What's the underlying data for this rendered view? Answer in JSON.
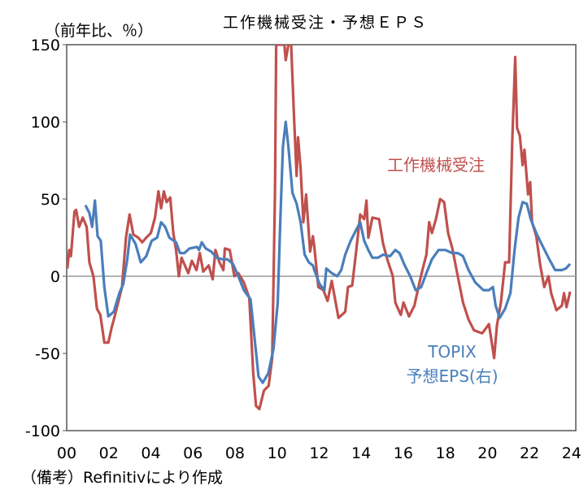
{
  "chart_data": {
    "type": "line",
    "title": "工作機械受注・予想ＥＰＳ",
    "ylabel": "（前年比、％）",
    "source_note": "（備考）Refinitivにより作成",
    "xlim": [
      2000,
      2024.2
    ],
    "ylim": [
      -100,
      150
    ],
    "yticks": [
      -100,
      -50,
      0,
      50,
      100,
      150
    ],
    "xtick_values": [
      2000,
      2002,
      2004,
      2006,
      2008,
      2010,
      2012,
      2014,
      2016,
      2018,
      2020,
      2022,
      2024
    ],
    "xtick_labels": [
      "00",
      "02",
      "04",
      "06",
      "08",
      "10",
      "12",
      "14",
      "16",
      "18",
      "20",
      "22",
      "24"
    ],
    "grid": false,
    "zero_line": true,
    "series": [
      {
        "name": "工作機械受注",
        "color": "#C0504D",
        "points": [
          [
            2000.03,
            5
          ],
          [
            2000.12,
            17
          ],
          [
            2000.2,
            13
          ],
          [
            2000.37,
            42
          ],
          [
            2000.45,
            43
          ],
          [
            2000.59,
            32
          ],
          [
            2000.76,
            38
          ],
          [
            2000.95,
            32
          ],
          [
            2001.08,
            9
          ],
          [
            2001.27,
            0
          ],
          [
            2001.44,
            -21
          ],
          [
            2001.6,
            -25
          ],
          [
            2001.79,
            -43
          ],
          [
            2001.98,
            -43
          ],
          [
            2002.14,
            -33
          ],
          [
            2002.3,
            -25
          ],
          [
            2002.63,
            -7
          ],
          [
            2002.82,
            25
          ],
          [
            2002.99,
            40
          ],
          [
            2003.17,
            27
          ],
          [
            2003.4,
            25
          ],
          [
            2003.59,
            22
          ],
          [
            2003.78,
            25
          ],
          [
            2004.0,
            28
          ],
          [
            2004.2,
            38
          ],
          [
            2004.36,
            55
          ],
          [
            2004.49,
            44
          ],
          [
            2004.62,
            55
          ],
          [
            2004.75,
            48
          ],
          [
            2004.92,
            51
          ],
          [
            2005.07,
            28
          ],
          [
            2005.2,
            17
          ],
          [
            2005.33,
            0
          ],
          [
            2005.46,
            12
          ],
          [
            2005.78,
            2
          ],
          [
            2005.95,
            10
          ],
          [
            2006.17,
            4
          ],
          [
            2006.33,
            15
          ],
          [
            2006.49,
            3
          ],
          [
            2006.75,
            7
          ],
          [
            2006.94,
            -2
          ],
          [
            2007.07,
            17
          ],
          [
            2007.26,
            9
          ],
          [
            2007.45,
            4
          ],
          [
            2007.52,
            18
          ],
          [
            2007.75,
            17
          ],
          [
            2007.97,
            0
          ],
          [
            2008.16,
            2
          ],
          [
            2008.42,
            -4
          ],
          [
            2008.68,
            -14
          ],
          [
            2008.87,
            -63
          ],
          [
            2009.0,
            -84
          ],
          [
            2009.16,
            -86
          ],
          [
            2009.38,
            -74
          ],
          [
            2009.6,
            -71
          ],
          [
            2009.77,
            -53
          ],
          [
            2009.9,
            53
          ],
          [
            2009.96,
            150
          ],
          [
            2010.35,
            150
          ],
          [
            2010.41,
            140
          ],
          [
            2010.54,
            150
          ],
          [
            2010.67,
            150
          ],
          [
            2010.8,
            105
          ],
          [
            2010.93,
            65
          ],
          [
            2011.0,
            90
          ],
          [
            2011.12,
            70
          ],
          [
            2011.25,
            35
          ],
          [
            2011.38,
            53
          ],
          [
            2011.57,
            16
          ],
          [
            2011.7,
            26
          ],
          [
            2011.77,
            19
          ],
          [
            2011.96,
            -7
          ],
          [
            2012.2,
            -9
          ],
          [
            2012.4,
            -16
          ],
          [
            2012.6,
            -3
          ],
          [
            2012.92,
            -27
          ],
          [
            2013.24,
            -23
          ],
          [
            2013.37,
            -7
          ],
          [
            2013.57,
            -6
          ],
          [
            2013.76,
            16
          ],
          [
            2013.95,
            40
          ],
          [
            2014.14,
            37
          ],
          [
            2014.25,
            49
          ],
          [
            2014.34,
            25
          ],
          [
            2014.53,
            38
          ],
          [
            2014.85,
            37
          ],
          [
            2015.04,
            21
          ],
          [
            2015.24,
            11
          ],
          [
            2015.5,
            0
          ],
          [
            2015.62,
            -17
          ],
          [
            2015.88,
            -25
          ],
          [
            2016.01,
            -17
          ],
          [
            2016.27,
            -26
          ],
          [
            2016.53,
            -19
          ],
          [
            2016.72,
            -7
          ],
          [
            2016.91,
            4
          ],
          [
            2017.1,
            14
          ],
          [
            2017.23,
            35
          ],
          [
            2017.36,
            28
          ],
          [
            2017.55,
            37
          ],
          [
            2017.75,
            50
          ],
          [
            2017.94,
            48
          ],
          [
            2018.13,
            28
          ],
          [
            2018.33,
            18
          ],
          [
            2018.59,
            0
          ],
          [
            2018.84,
            -17
          ],
          [
            2019.1,
            -28
          ],
          [
            2019.36,
            -35
          ],
          [
            2019.75,
            -37
          ],
          [
            2020.07,
            -31
          ],
          [
            2020.32,
            -53
          ],
          [
            2020.45,
            -32
          ],
          [
            2020.64,
            -17
          ],
          [
            2020.84,
            9
          ],
          [
            2021.03,
            9
          ],
          [
            2021.18,
            88
          ],
          [
            2021.32,
            142
          ],
          [
            2021.41,
            96
          ],
          [
            2021.54,
            91
          ],
          [
            2021.67,
            72
          ],
          [
            2021.76,
            82
          ],
          [
            2021.93,
            53
          ],
          [
            2022.03,
            61
          ],
          [
            2022.12,
            35
          ],
          [
            2022.32,
            26
          ],
          [
            2022.51,
            7
          ],
          [
            2022.7,
            -7
          ],
          [
            2022.9,
            0
          ],
          [
            2023.03,
            -11
          ],
          [
            2023.28,
            -22
          ],
          [
            2023.54,
            -19
          ],
          [
            2023.64,
            -11
          ],
          [
            2023.76,
            -20
          ],
          [
            2023.93,
            -10
          ]
        ]
      },
      {
        "name": "TOPIX 予想EPS(右)",
        "label_lines": [
          "TOPIX",
          "予想EPS(右)"
        ],
        "color": "#4A7EBB",
        "points": [
          [
            2000.89,
            46
          ],
          [
            2001.08,
            41
          ],
          [
            2001.21,
            32
          ],
          [
            2001.34,
            49
          ],
          [
            2001.47,
            26
          ],
          [
            2001.62,
            23
          ],
          [
            2001.79,
            -7
          ],
          [
            2001.98,
            -26
          ],
          [
            2002.24,
            -23
          ],
          [
            2002.5,
            -11
          ],
          [
            2002.69,
            -5
          ],
          [
            2002.88,
            11
          ],
          [
            2003.01,
            27
          ],
          [
            2003.27,
            21
          ],
          [
            2003.52,
            9
          ],
          [
            2003.78,
            13
          ],
          [
            2004.04,
            23
          ],
          [
            2004.3,
            25
          ],
          [
            2004.49,
            35
          ],
          [
            2004.68,
            32
          ],
          [
            2004.88,
            25
          ],
          [
            2005.2,
            22
          ],
          [
            2005.39,
            15
          ],
          [
            2005.59,
            15
          ],
          [
            2005.84,
            18
          ],
          [
            2006.2,
            19
          ],
          [
            2006.29,
            17
          ],
          [
            2006.42,
            22
          ],
          [
            2006.61,
            18
          ],
          [
            2006.87,
            16
          ],
          [
            2007.13,
            12
          ],
          [
            2007.39,
            11
          ],
          [
            2007.64,
            11
          ],
          [
            2007.9,
            8
          ],
          [
            2008.16,
            0
          ],
          [
            2008.42,
            -9
          ],
          [
            2008.74,
            -15
          ],
          [
            2008.93,
            -40
          ],
          [
            2009.12,
            -65
          ],
          [
            2009.32,
            -69
          ],
          [
            2009.58,
            -63
          ],
          [
            2009.83,
            -47
          ],
          [
            2010.03,
            -17
          ],
          [
            2010.15,
            35
          ],
          [
            2010.28,
            84
          ],
          [
            2010.41,
            100
          ],
          [
            2010.54,
            84
          ],
          [
            2010.73,
            54
          ],
          [
            2010.93,
            47
          ],
          [
            2011.12,
            35
          ],
          [
            2011.31,
            14
          ],
          [
            2011.51,
            9
          ],
          [
            2011.7,
            7
          ],
          [
            2011.77,
            4
          ],
          [
            2012.02,
            -5
          ],
          [
            2012.25,
            -9
          ],
          [
            2012.34,
            5
          ],
          [
            2012.6,
            2
          ],
          [
            2012.86,
            0
          ],
          [
            2013.05,
            4
          ],
          [
            2013.24,
            14
          ],
          [
            2013.5,
            23
          ],
          [
            2013.76,
            30
          ],
          [
            2013.95,
            35
          ],
          [
            2014.14,
            23
          ],
          [
            2014.34,
            17
          ],
          [
            2014.53,
            12
          ],
          [
            2014.79,
            12
          ],
          [
            2015.04,
            14
          ],
          [
            2015.37,
            13
          ],
          [
            2015.62,
            17
          ],
          [
            2015.82,
            15
          ],
          [
            2016.07,
            7
          ],
          [
            2016.33,
            0
          ],
          [
            2016.59,
            -9
          ],
          [
            2016.85,
            -7
          ],
          [
            2017.1,
            2
          ],
          [
            2017.36,
            11
          ],
          [
            2017.68,
            17
          ],
          [
            2018.0,
            17
          ],
          [
            2018.33,
            15
          ],
          [
            2018.59,
            15
          ],
          [
            2018.84,
            13
          ],
          [
            2019.1,
            4
          ],
          [
            2019.42,
            -4
          ],
          [
            2019.81,
            -9
          ],
          [
            2020.07,
            -9
          ],
          [
            2020.26,
            -7
          ],
          [
            2020.39,
            -19
          ],
          [
            2020.58,
            -27
          ],
          [
            2020.84,
            -21
          ],
          [
            2021.09,
            -11
          ],
          [
            2021.29,
            17
          ],
          [
            2021.48,
            38
          ],
          [
            2021.67,
            48
          ],
          [
            2021.87,
            47
          ],
          [
            2022.06,
            37
          ],
          [
            2022.32,
            28
          ],
          [
            2022.57,
            21
          ],
          [
            2022.9,
            12
          ],
          [
            2023.22,
            4
          ],
          [
            2023.54,
            4
          ],
          [
            2023.73,
            5
          ],
          [
            2023.93,
            8
          ]
        ]
      }
    ]
  }
}
